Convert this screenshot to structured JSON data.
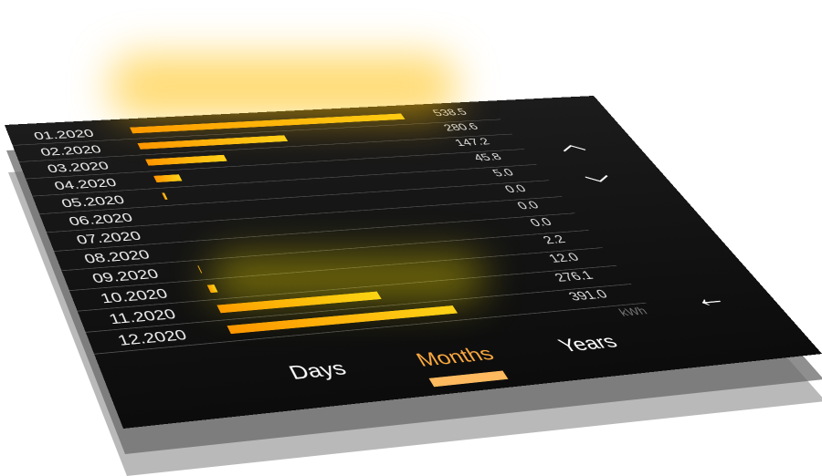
{
  "chart_data": {
    "type": "bar",
    "categories": [
      "01.2020",
      "02.2020",
      "03.2020",
      "04.2020",
      "05.2020",
      "06.2020",
      "07.2020",
      "08.2020",
      "09.2020",
      "10.2020",
      "11.2020",
      "12.2020"
    ],
    "values": [
      "538.5",
      "280.6",
      "147.2",
      "45.8",
      "5.0",
      "0.0",
      "0.0",
      "0.0",
      "2.2",
      "12.0",
      "276.1",
      "391.0"
    ],
    "unit": "kWh",
    "bar_color": "#ffa500"
  },
  "nav": {
    "up_icon": "chevron-up-icon",
    "down_icon": "chevron-down-icon",
    "back_icon": "arrow-left-icon",
    "up": "︿",
    "down": "﹀",
    "back": "←"
  },
  "tabs": [
    {
      "label": "Days"
    },
    {
      "label": "Months",
      "active": true
    },
    {
      "label": "Years"
    }
  ],
  "colors": {
    "accent": "#ffab40",
    "panel": "#111111"
  }
}
